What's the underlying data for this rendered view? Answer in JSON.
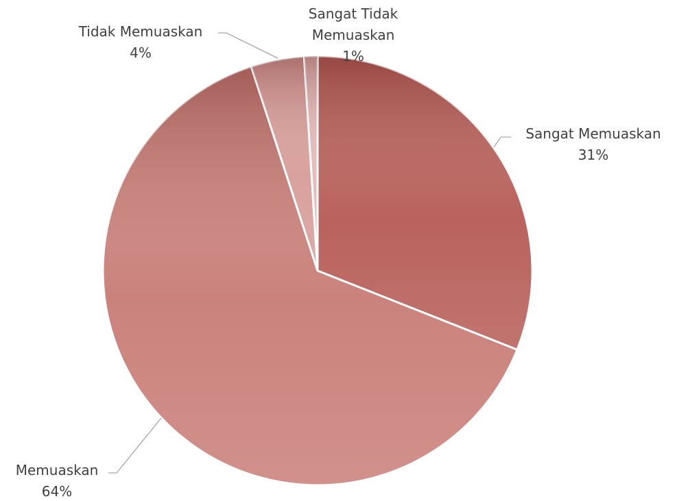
{
  "chart_data": {
    "type": "pie",
    "categories": [
      "Sangat Memuaskan",
      "Memuaskan",
      "Tidak Memuaskan",
      "Sangat Tidak Memuaskan"
    ],
    "values": [
      31,
      64,
      4,
      1
    ],
    "value_labels": [
      "31%",
      "64%",
      "4%",
      "1%"
    ],
    "colors": [
      "#b9625c",
      "#cb827c",
      "#d8a19d",
      "#e4bcbb"
    ]
  }
}
